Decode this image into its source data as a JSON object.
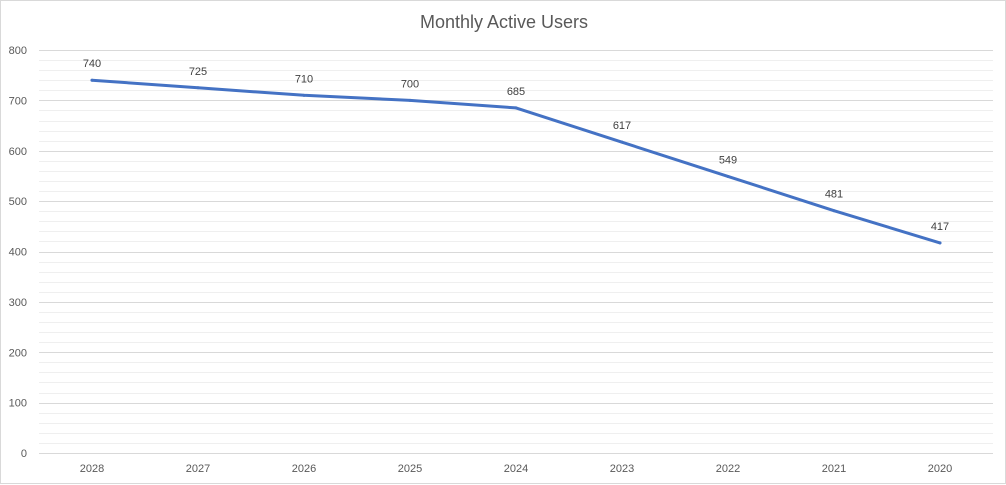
{
  "chart_data": {
    "type": "line",
    "title": "Monthly Active Users",
    "xlabel": "",
    "ylabel": "",
    "categories": [
      "2028",
      "2027",
      "2026",
      "2025",
      "2024",
      "2023",
      "2022",
      "2021",
      "2020"
    ],
    "series": [
      {
        "values": [
          740,
          725,
          710,
          700,
          685,
          617,
          549,
          481,
          417
        ]
      }
    ],
    "ylim": [
      0,
      800
    ],
    "yticks": [
      0,
      100,
      200,
      300,
      400,
      500,
      600,
      700,
      800
    ],
    "minor_grid_step": 20,
    "grid": true,
    "data_labels": true,
    "legend": "none",
    "colors": {
      "line": "#4472c4",
      "major_grid": "#d9d9d9",
      "minor_grid": "#efefef",
      "axis_text": "#595959",
      "label_text": "#404040"
    }
  }
}
